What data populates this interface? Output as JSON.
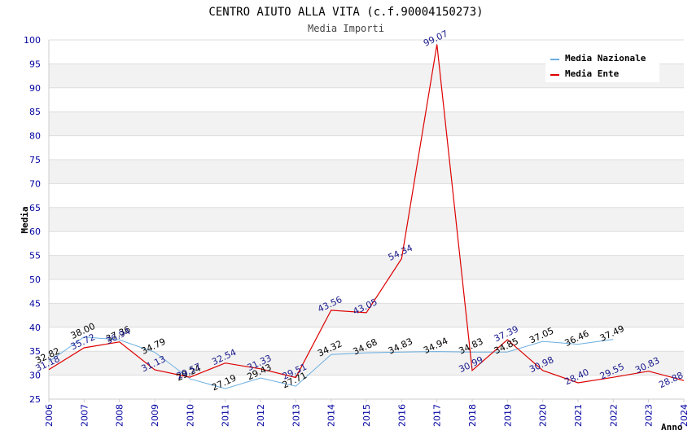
{
  "chart_data": {
    "type": "line",
    "title": "CENTRO AIUTO ALLA VITA (c.f.90004150273)",
    "subtitle": "Media Importi",
    "xlabel": "Anno",
    "ylabel": "Media",
    "ylim": [
      25,
      100
    ],
    "yticks": [
      25,
      30,
      35,
      40,
      45,
      50,
      55,
      60,
      65,
      70,
      75,
      80,
      85,
      90,
      95,
      100
    ],
    "x": [
      2006,
      2007,
      2008,
      2009,
      2010,
      2011,
      2012,
      2013,
      2014,
      2015,
      2016,
      2017,
      2018,
      2019,
      2020,
      2021,
      2022,
      2023,
      2024
    ],
    "x_labels": [
      "2006",
      "2007",
      "2008",
      "2009",
      "2010",
      "2011",
      "2012",
      "2013",
      "2014",
      "2015",
      "2016",
      "2017",
      "2018",
      "2019",
      "2020",
      "2021",
      "2022",
      "2023",
      "2024"
    ],
    "grid": true,
    "legend_position": "top-right",
    "series": [
      {
        "name": "Media Nazionale",
        "color": "#6aaee0",
        "values": [
          32.82,
          38.0,
          37.36,
          34.79,
          29.24,
          27.19,
          29.43,
          27.71,
          34.32,
          34.68,
          34.83,
          34.94,
          34.83,
          34.85,
          37.05,
          36.46,
          37.49,
          null,
          null
        ],
        "labels": [
          "32.82",
          "38.00",
          "37.36",
          "34.79",
          "29.24",
          "27.19",
          "29.43",
          "27.71",
          "34.32",
          "34.68",
          "34.83",
          "34.94",
          "34.83",
          "34.85",
          "37.05",
          "36.46",
          "37.49",
          "",
          ""
        ]
      },
      {
        "name": "Media Ente",
        "color": "#dd0000",
        "values": [
          31.18,
          35.72,
          36.94,
          31.13,
          29.57,
          32.54,
          31.33,
          29.51,
          43.56,
          43.05,
          54.34,
          99.07,
          30.99,
          37.39,
          30.98,
          28.4,
          29.55,
          30.83,
          28.88
        ],
        "labels": [
          "31.18",
          "35.72",
          "36.94",
          "31.13",
          "29.57",
          "32.54",
          "31.33",
          "29.51",
          "43.56",
          "43.05",
          "54.34",
          "99.07",
          "30.99",
          "37.39",
          "30.98",
          "28.40",
          "29.55",
          "30.83",
          "28.88"
        ]
      }
    ]
  }
}
